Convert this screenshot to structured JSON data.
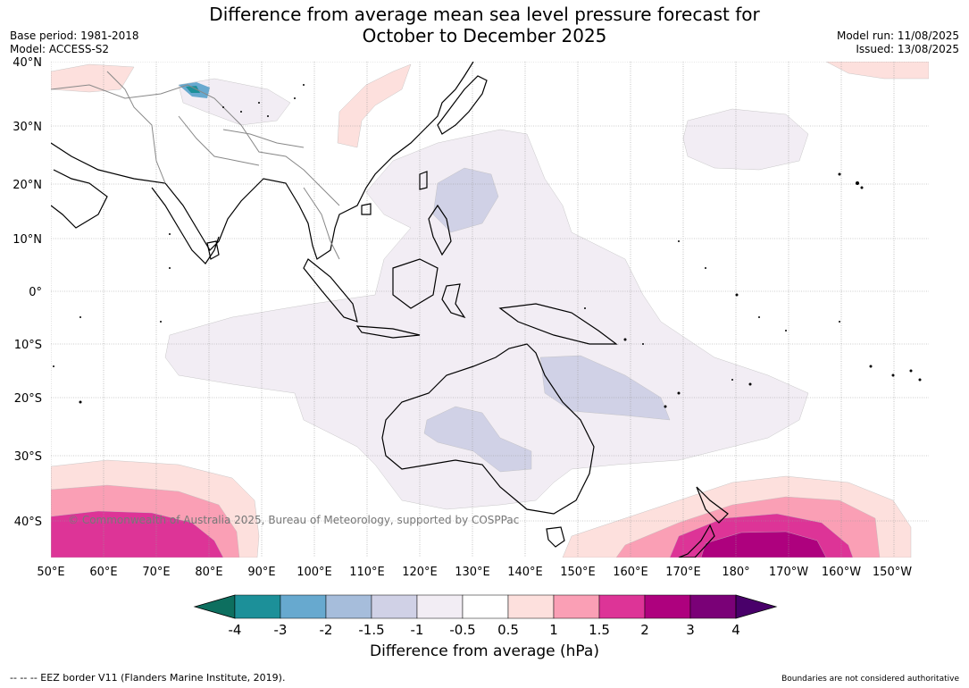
{
  "header": {
    "title_line1": "Difference from average mean sea level pressure forecast for",
    "title_line2": "October to December 2025",
    "base_period": "Base period: 1981-2018",
    "model": "Model: ACCESS-S2",
    "model_run": "Model run: 11/08/2025",
    "issued": "Issued: 13/08/2025"
  },
  "map": {
    "lat_labels": [
      "40°N",
      "30°N",
      "20°N",
      "10°N",
      "0°",
      "10°S",
      "20°S",
      "30°S",
      "40°S"
    ],
    "lon_labels": [
      "50°E",
      "60°E",
      "70°E",
      "80°E",
      "90°E",
      "100°E",
      "110°E",
      "120°E",
      "130°E",
      "140°E",
      "150°E",
      "160°E",
      "170°E",
      "180°",
      "170°W",
      "160°W",
      "150°W"
    ],
    "copyright": "© Commonwealth of Australia 2025, Bureau of Meteorology, supported by COSPPac",
    "colors": {
      "lt_neg_1": "#f2edf4",
      "neg_1_15": "#d0d1e6",
      "pos_05_1": "#fde0dd",
      "pos_1_15": "#fa9fb5",
      "pos_15_2": "#dd3497",
      "pos_2_3": "#ae017e",
      "land_line": "#000000",
      "border_line": "#888888",
      "grid_line": "#999999"
    }
  },
  "colorbar": {
    "ticks": [
      "-4",
      "-3",
      "-2",
      "-1.5",
      "-1",
      "-0.5",
      "0.5",
      "1",
      "1.5",
      "2",
      "3",
      "4"
    ],
    "colors": [
      "#0d6f5f",
      "#1c9099",
      "#67a9cf",
      "#a6bddb",
      "#d0d1e6",
      "#f2edf4",
      "#ffffff",
      "#fde0dd",
      "#fa9fb5",
      "#dd3497",
      "#ae017e",
      "#7a0177",
      "#49006a"
    ],
    "label": "Difference from average (hPa)"
  },
  "footer": {
    "eez": "--  --  -- EEZ border V11 (Flanders Marine Institute, 2019).",
    "disclaimer": "Boundaries are not considered authoritative"
  }
}
